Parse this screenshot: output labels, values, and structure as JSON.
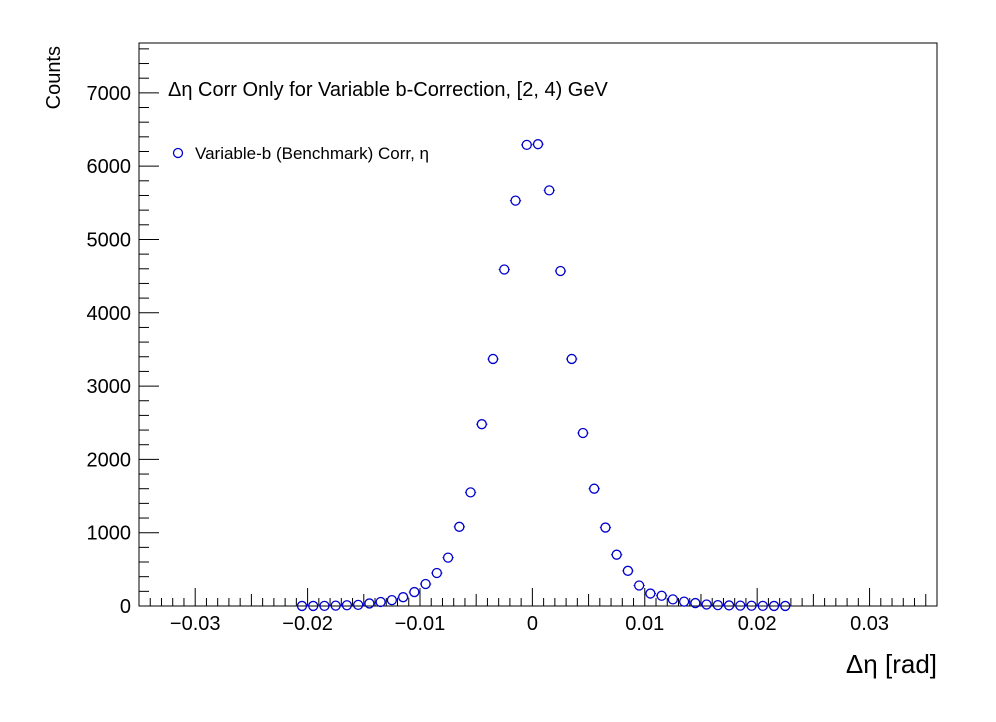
{
  "chart_data": {
    "type": "scatter",
    "title": "Δη Corr Only for Variable b-Correction, [2, 4) GeV",
    "xlabel": "Δη  [rad]",
    "ylabel": "Counts",
    "xlim": [
      -0.035,
      0.036
    ],
    "ylim": [
      0,
      7680
    ],
    "xticks": [
      -0.03,
      -0.02,
      -0.01,
      0,
      0.01,
      0.02,
      0.03
    ],
    "xtick_labels": [
      "−0.03",
      "−0.02",
      "−0.01",
      "0",
      "0.01",
      "0.02",
      "0.03"
    ],
    "yticks": [
      0,
      1000,
      2000,
      3000,
      4000,
      5000,
      6000,
      7000
    ],
    "ytick_labels": [
      "0",
      "1000",
      "2000",
      "3000",
      "4000",
      "5000",
      "6000",
      "7000"
    ],
    "grid": false,
    "legend_position": "top-left",
    "series": [
      {
        "name": "Variable-b (Benchmark) Corr, η",
        "color": "#0000cc",
        "marker": "open-circle",
        "x": [
          -0.0205,
          -0.0195,
          -0.0185,
          -0.0175,
          -0.0165,
          -0.0155,
          -0.0145,
          -0.0135,
          -0.0125,
          -0.0115,
          -0.0105,
          -0.0095,
          -0.0085,
          -0.0075,
          -0.0065,
          -0.0055,
          -0.0045,
          -0.0035,
          -0.0025,
          -0.0015,
          -0.0005,
          0.0005,
          0.0015,
          0.0025,
          0.0035,
          0.0045,
          0.0055,
          0.0065,
          0.0075,
          0.0085,
          0.0095,
          0.0105,
          0.0115,
          0.0125,
          0.0135,
          0.0145,
          0.0155,
          0.0165,
          0.0175,
          0.0185,
          0.0195,
          0.0205,
          0.0215,
          0.0225
        ],
        "y": [
          1,
          1,
          2,
          5,
          10,
          15,
          35,
          55,
          80,
          120,
          190,
          300,
          450,
          660,
          1080,
          1550,
          2480,
          3370,
          4590,
          5530,
          6290,
          6300,
          5670,
          4570,
          3370,
          2360,
          1600,
          1070,
          700,
          480,
          280,
          170,
          140,
          90,
          60,
          40,
          20,
          12,
          8,
          5,
          3,
          2,
          1,
          1
        ]
      }
    ]
  }
}
